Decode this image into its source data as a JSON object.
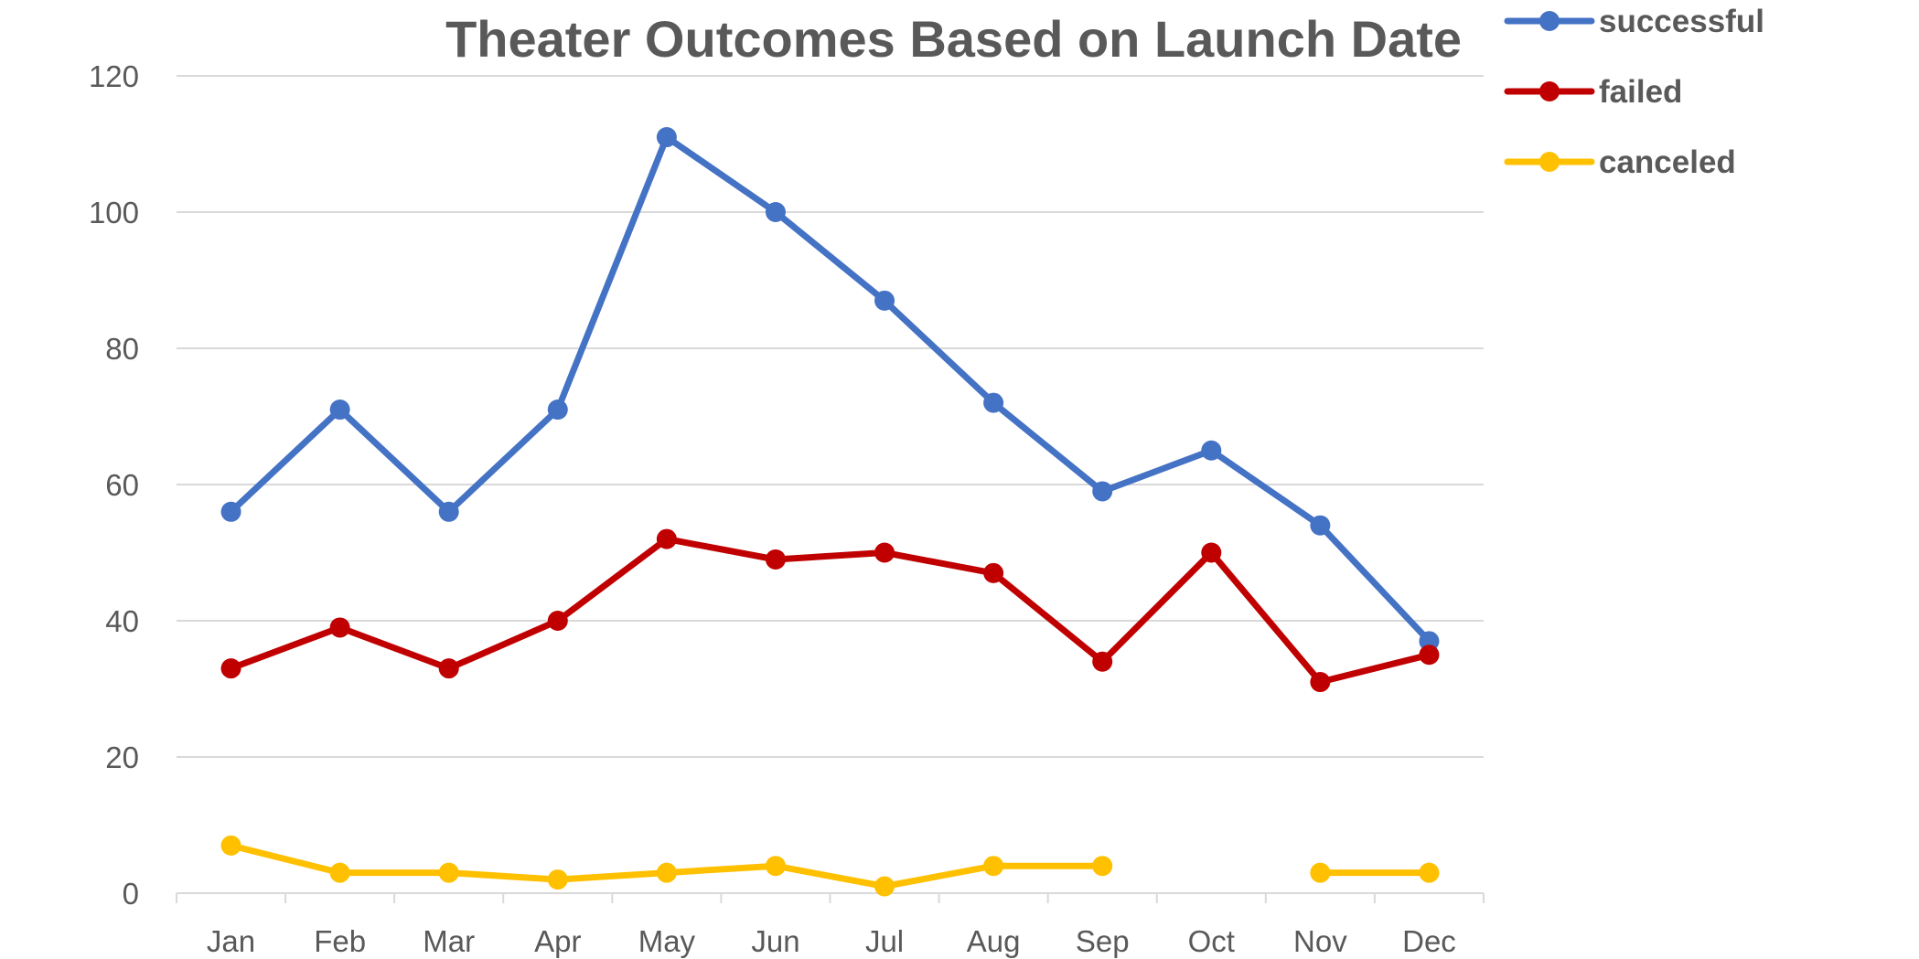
{
  "chart_data": {
    "type": "line",
    "title": "Theater Outcomes Based on Launch Date",
    "xlabel": "",
    "ylabel": "",
    "categories": [
      "Jan",
      "Feb",
      "Mar",
      "Apr",
      "May",
      "Jun",
      "Jul",
      "Aug",
      "Sep",
      "Oct",
      "Nov",
      "Dec"
    ],
    "ylim": [
      0,
      120
    ],
    "yticks": [
      0,
      20,
      40,
      60,
      80,
      100,
      120
    ],
    "grid": true,
    "legend_position": "top-right",
    "series": [
      {
        "name": "successful",
        "color": "#4472c4",
        "values": [
          56,
          71,
          56,
          71,
          111,
          100,
          87,
          72,
          59,
          65,
          54,
          37
        ]
      },
      {
        "name": "failed",
        "color": "#c00000",
        "values": [
          33,
          39,
          33,
          40,
          52,
          49,
          50,
          47,
          34,
          50,
          31,
          35
        ]
      },
      {
        "name": "canceled",
        "color": "#ffc000",
        "values": [
          7,
          3,
          3,
          2,
          3,
          4,
          1,
          4,
          4,
          null,
          3,
          3
        ]
      }
    ]
  }
}
